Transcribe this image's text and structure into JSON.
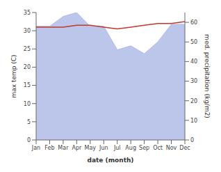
{
  "chart_data": {
    "type": "line",
    "categories": [
      "Jan",
      "Feb",
      "Mar",
      "Apr",
      "May",
      "Jun",
      "Jul",
      "Aug",
      "Sep",
      "Oct",
      "Nov",
      "Dec"
    ],
    "series": [
      {
        "type": "area",
        "axis": "y2",
        "color": "#b0bce8",
        "values": [
          58,
          58,
          63,
          65,
          58,
          58,
          46,
          48,
          44,
          50,
          59,
          59
        ]
      },
      {
        "type": "line",
        "axis": "y",
        "color": "#c0392b",
        "values": [
          31.0,
          31.0,
          31.0,
          31.5,
          31.5,
          31.0,
          30.5,
          31.0,
          31.5,
          32.0,
          32.0,
          32.5
        ]
      }
    ],
    "xlabel": "date (month)",
    "ylabel": "max temp (C)",
    "y2label": "med. precipitation (kg/m2)",
    "ylim": [
      0,
      35
    ],
    "yticks": [
      0,
      5,
      10,
      15,
      20,
      25,
      30,
      35
    ],
    "y2lim": [
      0,
      65
    ],
    "y2ticks": [
      0,
      10,
      20,
      30,
      40,
      50,
      60
    ],
    "grid": false
  }
}
